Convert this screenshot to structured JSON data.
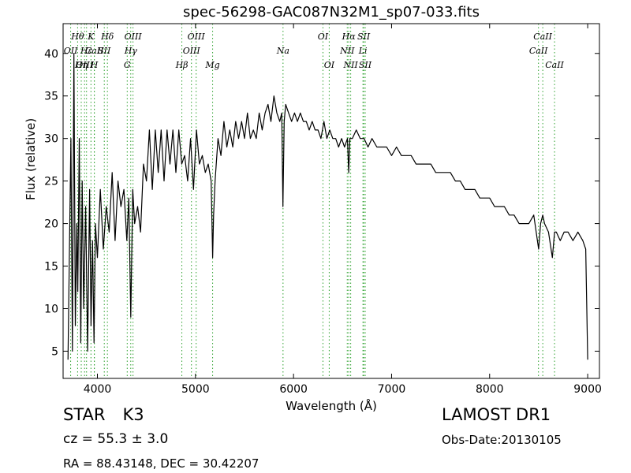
{
  "header": {
    "title": "spec-56298-GAC087N32M1_sp07-033.fits"
  },
  "info": {
    "obj_class": "STAR",
    "obj_subclass": "K3",
    "cz": "cz = 55.3 ± 3.0",
    "radec": "RA = 88.43148, DEC = 30.42207",
    "survey": "LAMOST DR1",
    "obs_date": "Obs-Date:20130105"
  },
  "chart_data": {
    "type": "line",
    "title": "spec-56298-GAC087N32M1_sp07-033.fits",
    "xlabel": "Wavelength (Å)",
    "ylabel": "Flux (relative)",
    "xlim": [
      3650,
      9120
    ],
    "ylim": [
      1.8,
      43.5
    ],
    "xticks": [
      4000,
      5000,
      6000,
      7000,
      8000,
      9000
    ],
    "yticks": [
      5,
      10,
      15,
      20,
      25,
      30,
      35,
      40
    ],
    "line_color": "#000000",
    "marker_color": "#2ca02c",
    "grid": false,
    "series": [
      {
        "x": [
          3700,
          3730,
          3745,
          3760,
          3775,
          3790,
          3800,
          3815,
          3830,
          3845,
          3860,
          3880,
          3900,
          3920,
          3935,
          3950,
          3965,
          3980,
          4000,
          4030,
          4060,
          4090,
          4120,
          4150,
          4180,
          4210,
          4240,
          4270,
          4300,
          4320,
          4340,
          4360,
          4380,
          4410,
          4440,
          4470,
          4500,
          4530,
          4560,
          4590,
          4620,
          4650,
          4680,
          4710,
          4740,
          4770,
          4800,
          4830,
          4860,
          4890,
          4920,
          4950,
          4980,
          5010,
          5040,
          5070,
          5100,
          5130,
          5160,
          5175,
          5185,
          5200,
          5230,
          5260,
          5290,
          5320,
          5350,
          5380,
          5410,
          5440,
          5470,
          5500,
          5530,
          5560,
          5590,
          5620,
          5650,
          5680,
          5710,
          5740,
          5770,
          5800,
          5830,
          5860,
          5880,
          5892,
          5905,
          5920,
          5950,
          5980,
          6010,
          6040,
          6070,
          6100,
          6130,
          6160,
          6190,
          6220,
          6250,
          6280,
          6310,
          6340,
          6370,
          6400,
          6430,
          6460,
          6490,
          6520,
          6550,
          6563,
          6575,
          6600,
          6640,
          6680,
          6720,
          6760,
          6800,
          6850,
          6900,
          6950,
          7000,
          7050,
          7100,
          7150,
          7200,
          7250,
          7300,
          7350,
          7400,
          7450,
          7500,
          7550,
          7600,
          7650,
          7700,
          7750,
          7800,
          7850,
          7900,
          7950,
          8000,
          8050,
          8100,
          8150,
          8200,
          8250,
          8300,
          8350,
          8400,
          8450,
          8500,
          8520,
          8542,
          8560,
          8600,
          8640,
          8662,
          8680,
          8720,
          8760,
          8800,
          8850,
          8900,
          8950,
          8980,
          9000
        ],
        "y": [
          4,
          30,
          5,
          40,
          8,
          20,
          12,
          30,
          6,
          25,
          10,
          22,
          5,
          24,
          8,
          18,
          6,
          20,
          16,
          24,
          17,
          22,
          19,
          26,
          18,
          25,
          22,
          24,
          18,
          23,
          9,
          24,
          20,
          22,
          19,
          27,
          25,
          31,
          24,
          31,
          26,
          31,
          25,
          31,
          27,
          31,
          26,
          31,
          27,
          28,
          25,
          30,
          24,
          31,
          27,
          28,
          26,
          27,
          25,
          16,
          21,
          25,
          30,
          28,
          32,
          29,
          31,
          29,
          32,
          30,
          32,
          30,
          33,
          30,
          31,
          30,
          33,
          31,
          33,
          34,
          32,
          35,
          33,
          32,
          33,
          22,
          32,
          34,
          33,
          32,
          33,
          32,
          33,
          32,
          32,
          31,
          32,
          31,
          31,
          30,
          32,
          30,
          31,
          30,
          30,
          29,
          30,
          29,
          30,
          26,
          30,
          30,
          31,
          30,
          30,
          29,
          30,
          29,
          29,
          29,
          28,
          29,
          28,
          28,
          28,
          27,
          27,
          27,
          27,
          26,
          26,
          26,
          26,
          25,
          25,
          24,
          24,
          24,
          23,
          23,
          23,
          22,
          22,
          22,
          21,
          21,
          20,
          20,
          20,
          21,
          17,
          20,
          21,
          20,
          19,
          16,
          19,
          19,
          18,
          19,
          19,
          18,
          19,
          18,
          17,
          4
        ]
      }
    ],
    "line_markers": [
      {
        "label": "Hθ",
        "x": 3798,
        "row": 1
      },
      {
        "label": "K",
        "x": 3934,
        "row": 1
      },
      {
        "label": "Hδ",
        "x": 4102,
        "row": 1
      },
      {
        "label": "OIII",
        "x": 4363,
        "row": 1
      },
      {
        "label": "OII",
        "x": 3727,
        "row": 2
      },
      {
        "label": "Hε",
        "x": 3889,
        "row": 2
      },
      {
        "label": "CaII",
        "x": 3969,
        "row": 2
      },
      {
        "label": "SII",
        "x": 4070,
        "row": 2
      },
      {
        "label": "Hγ",
        "x": 4340,
        "row": 2
      },
      {
        "label": "OIII",
        "x": 3869,
        "row": 3
      },
      {
        "label": "Hη",
        "x": 3835,
        "row": 3
      },
      {
        "label": "H",
        "x": 3968,
        "row": 3
      },
      {
        "label": "G",
        "x": 4304,
        "row": 3
      },
      {
        "label": "OIII",
        "x": 5007,
        "row": 1
      },
      {
        "label": "OIII",
        "x": 4959,
        "row": 2
      },
      {
        "label": "Hβ",
        "x": 4861,
        "row": 3
      },
      {
        "label": "Mg",
        "x": 5175,
        "row": 3
      },
      {
        "label": "Na",
        "x": 5893,
        "row": 2
      },
      {
        "label": "OI",
        "x": 6300,
        "row": 1
      },
      {
        "label": "OI",
        "x": 6364,
        "row": 3
      },
      {
        "label": "Hα",
        "x": 6563,
        "row": 1
      },
      {
        "label": "SII",
        "x": 6716,
        "row": 1
      },
      {
        "label": "NII",
        "x": 6548,
        "row": 2
      },
      {
        "label": "Li",
        "x": 6708,
        "row": 2
      },
      {
        "label": "NII",
        "x": 6583,
        "row": 3
      },
      {
        "label": "SII",
        "x": 6731,
        "row": 3
      },
      {
        "label": "CaII",
        "x": 8542,
        "row": 1
      },
      {
        "label": "CaII",
        "x": 8498,
        "row": 2
      },
      {
        "label": "CaII",
        "x": 8662,
        "row": 3
      }
    ]
  }
}
